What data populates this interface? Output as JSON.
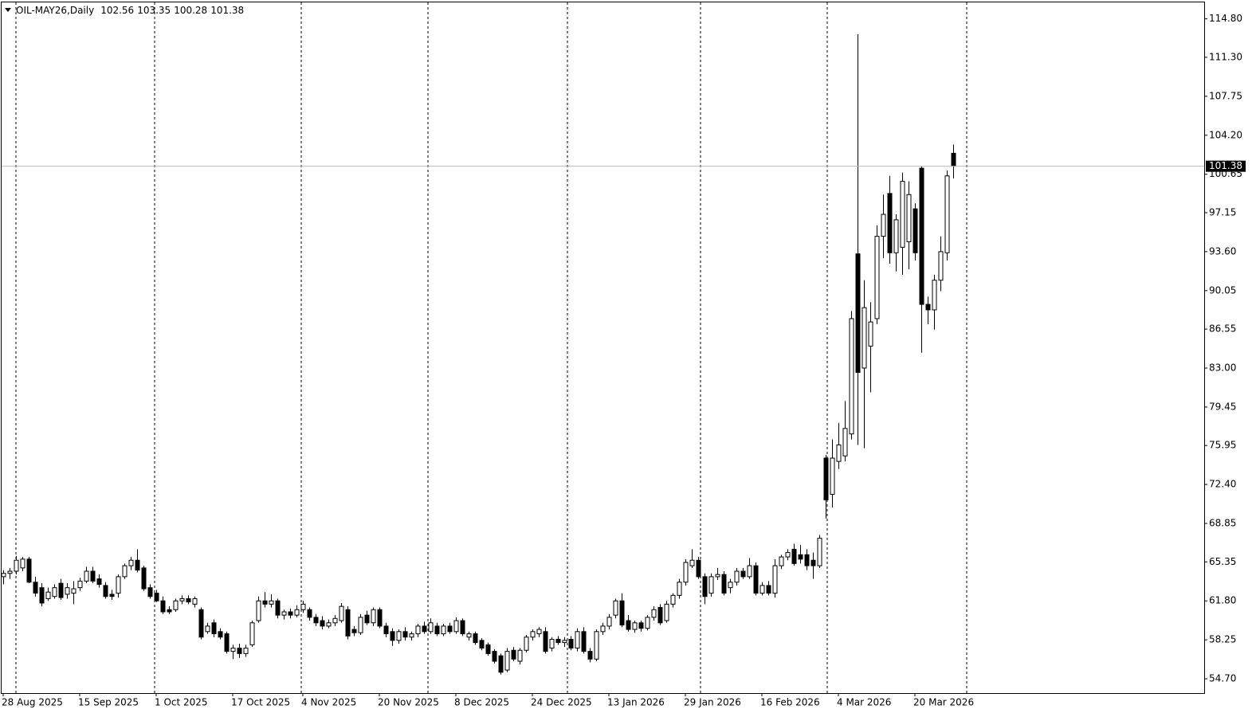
{
  "chart_data": {
    "type": "candlestick",
    "title": "OIL-MAY26,Daily",
    "up_color": "#ffffff",
    "down_color": "#000000",
    "wick_color": "#000000",
    "ylim": [
      53.4,
      116.3
    ],
    "yticks": [
      {
        "value": 54.7,
        "label": "54.70"
      },
      {
        "value": 58.25,
        "label": "58.25"
      },
      {
        "value": 61.8,
        "label": "61.80"
      },
      {
        "value": 65.35,
        "label": "65.35"
      },
      {
        "value": 68.85,
        "label": "68.85"
      },
      {
        "value": 72.4,
        "label": "72.40"
      },
      {
        "value": 75.95,
        "label": "75.95"
      },
      {
        "value": 79.45,
        "label": "79.45"
      },
      {
        "value": 83,
        "label": "83.00"
      },
      {
        "value": 86.55,
        "label": "86.55"
      },
      {
        "value": 90.05,
        "label": "90.05"
      },
      {
        "value": 93.6,
        "label": "93.60"
      },
      {
        "value": 97.15,
        "label": "97.15"
      },
      {
        "value": 100.65,
        "label": "100.65"
      },
      {
        "value": 104.2,
        "label": "104.20"
      },
      {
        "value": 107.75,
        "label": "107.75"
      },
      {
        "value": 111.3,
        "label": "111.30"
      },
      {
        "value": 114.8,
        "label": "114.80"
      }
    ],
    "categories": [
      "28 Aug 2025",
      null,
      null,
      null,
      null,
      null,
      null,
      null,
      null,
      null,
      null,
      null,
      "15 Sep 2025",
      null,
      null,
      null,
      null,
      null,
      null,
      null,
      null,
      null,
      null,
      null,
      "1 Oct 2025",
      null,
      null,
      null,
      null,
      null,
      null,
      null,
      null,
      null,
      null,
      null,
      "17 Oct 2025",
      null,
      null,
      null,
      null,
      null,
      null,
      null,
      null,
      null,
      null,
      "4 Nov 2025",
      null,
      null,
      null,
      null,
      null,
      null,
      null,
      null,
      null,
      null,
      null,
      "20 Nov 2025",
      null,
      null,
      null,
      null,
      null,
      null,
      null,
      null,
      null,
      null,
      null,
      "8 Dec 2025",
      null,
      null,
      null,
      null,
      null,
      null,
      null,
      null,
      null,
      null,
      null,
      "24 Dec 2025",
      null,
      null,
      null,
      null,
      null,
      null,
      null,
      null,
      null,
      null,
      null,
      "13 Jan 2026",
      null,
      null,
      null,
      null,
      null,
      null,
      null,
      null,
      null,
      null,
      null,
      "29 Jan 2026",
      null,
      null,
      null,
      null,
      null,
      null,
      null,
      null,
      null,
      null,
      null,
      "16 Feb 2026",
      null,
      null,
      null,
      null,
      null,
      null,
      null,
      null,
      null,
      null,
      null,
      "4 Mar 2026",
      null,
      null,
      null,
      null,
      null,
      null,
      null,
      null,
      null,
      null,
      null,
      "20 Mar 2026",
      null,
      null,
      null,
      null,
      null,
      null
    ],
    "ohlc": [
      [
        64.0,
        64.6,
        63.3,
        64.3
      ],
      [
        64.3,
        64.8,
        63.8,
        64.5
      ],
      [
        64.5,
        65.9,
        64.2,
        65.5
      ],
      [
        64.8,
        65.8,
        64.5,
        65.6
      ],
      [
        65.6,
        65.8,
        63.4,
        63.5
      ],
      [
        63.5,
        64.0,
        62.2,
        62.5
      ],
      [
        63.0,
        63.4,
        61.3,
        61.6
      ],
      [
        62.0,
        63.0,
        61.8,
        62.6
      ],
      [
        62.2,
        63.3,
        62.0,
        63.0
      ],
      [
        63.4,
        63.8,
        61.9,
        62.1
      ],
      [
        62.4,
        63.4,
        62.0,
        63.0
      ],
      [
        62.5,
        63.6,
        61.5,
        62.9
      ],
      [
        63.0,
        63.9,
        62.7,
        63.6
      ],
      [
        63.6,
        64.9,
        63.4,
        64.5
      ],
      [
        64.5,
        64.9,
        63.4,
        63.6
      ],
      [
        63.8,
        64.2,
        63.0,
        63.3
      ],
      [
        63.2,
        63.5,
        62.0,
        62.2
      ],
      [
        62.4,
        62.8,
        61.9,
        62.2
      ],
      [
        62.5,
        64.2,
        62.1,
        64.0
      ],
      [
        64.0,
        65.2,
        63.8,
        65.0
      ],
      [
        65.0,
        65.8,
        64.6,
        65.5
      ],
      [
        65.5,
        66.5,
        64.4,
        64.6
      ],
      [
        64.8,
        65.0,
        62.7,
        62.9
      ],
      [
        63.0,
        63.3,
        62.0,
        62.2
      ],
      [
        62.5,
        62.8,
        61.7,
        61.8
      ],
      [
        61.8,
        62.2,
        60.6,
        60.8
      ],
      [
        61.0,
        61.3,
        60.6,
        60.8
      ],
      [
        61.0,
        62.0,
        60.8,
        61.8
      ],
      [
        61.8,
        62.3,
        61.5,
        62.0
      ],
      [
        62.0,
        62.3,
        61.5,
        61.7
      ],
      [
        61.5,
        62.2,
        61.2,
        62.0
      ],
      [
        61.0,
        61.2,
        58.3,
        58.5
      ],
      [
        59.0,
        59.8,
        58.8,
        59.5
      ],
      [
        59.8,
        60.1,
        58.5,
        58.8
      ],
      [
        59.0,
        59.3,
        58.3,
        58.5
      ],
      [
        58.8,
        59.0,
        57.0,
        57.2
      ],
      [
        57.2,
        57.8,
        56.5,
        57.5
      ],
      [
        57.5,
        57.9,
        56.6,
        57.0
      ],
      [
        57.0,
        57.8,
        56.7,
        57.5
      ],
      [
        57.8,
        60.0,
        57.6,
        59.8
      ],
      [
        60.0,
        62.2,
        59.8,
        61.8
      ],
      [
        61.8,
        62.6,
        61.2,
        61.5
      ],
      [
        61.5,
        62.4,
        61.2,
        61.8
      ],
      [
        61.8,
        62.0,
        60.2,
        60.5
      ],
      [
        60.5,
        61.0,
        60.1,
        60.8
      ],
      [
        60.8,
        61.1,
        60.2,
        60.5
      ],
      [
        60.5,
        61.4,
        60.3,
        61.0
      ],
      [
        61.0,
        61.8,
        60.7,
        61.5
      ],
      [
        61.0,
        61.2,
        60.0,
        60.3
      ],
      [
        60.3,
        60.6,
        59.5,
        59.8
      ],
      [
        60.0,
        60.4,
        59.2,
        59.5
      ],
      [
        59.5,
        60.1,
        59.3,
        59.8
      ],
      [
        59.8,
        60.5,
        59.5,
        60.2
      ],
      [
        60.0,
        61.6,
        59.8,
        61.3
      ],
      [
        61.0,
        61.3,
        58.3,
        58.6
      ],
      [
        59.2,
        59.5,
        58.6,
        58.9
      ],
      [
        58.9,
        60.6,
        58.7,
        60.3
      ],
      [
        60.5,
        60.9,
        59.6,
        59.8
      ],
      [
        59.8,
        61.2,
        59.5,
        61.0
      ],
      [
        61.0,
        61.2,
        59.3,
        59.5
      ],
      [
        59.5,
        59.8,
        58.5,
        58.8
      ],
      [
        59.0,
        59.3,
        57.7,
        58.2
      ],
      [
        58.2,
        59.2,
        57.9,
        59.0
      ],
      [
        59.0,
        59.4,
        58.2,
        58.5
      ],
      [
        58.5,
        59.0,
        58.2,
        58.8
      ],
      [
        58.8,
        59.7,
        58.5,
        59.5
      ],
      [
        59.5,
        59.9,
        58.8,
        59.0
      ],
      [
        59.0,
        60.2,
        58.8,
        59.8
      ],
      [
        59.5,
        59.8,
        58.6,
        58.8
      ],
      [
        58.8,
        59.7,
        58.6,
        59.5
      ],
      [
        59.5,
        59.8,
        58.8,
        59.0
      ],
      [
        59.0,
        60.3,
        58.8,
        60.0
      ],
      [
        60.0,
        60.2,
        58.6,
        58.8
      ],
      [
        58.5,
        59.0,
        58.2,
        58.8
      ],
      [
        58.8,
        59.0,
        57.8,
        58.0
      ],
      [
        58.2,
        58.4,
        57.3,
        57.5
      ],
      [
        57.8,
        58.0,
        56.8,
        57.0
      ],
      [
        57.2,
        57.4,
        56.1,
        56.3
      ],
      [
        56.8,
        57.0,
        55.1,
        55.3
      ],
      [
        55.5,
        57.5,
        55.3,
        57.2
      ],
      [
        57.3,
        57.6,
        56.3,
        56.5
      ],
      [
        56.3,
        57.5,
        56.0,
        57.3
      ],
      [
        57.3,
        58.7,
        57.1,
        58.5
      ],
      [
        58.5,
        59.2,
        58.2,
        59.0
      ],
      [
        58.8,
        59.4,
        58.5,
        59.2
      ],
      [
        59.0,
        59.4,
        57.0,
        57.2
      ],
      [
        57.5,
        58.5,
        57.2,
        58.3
      ],
      [
        58.3,
        58.6,
        57.8,
        58.0
      ],
      [
        58.0,
        58.5,
        57.6,
        58.2
      ],
      [
        58.3,
        58.6,
        57.3,
        57.5
      ],
      [
        57.5,
        59.3,
        57.2,
        59.0
      ],
      [
        59.0,
        59.4,
        57.0,
        57.2
      ],
      [
        57.2,
        57.5,
        56.2,
        56.5
      ],
      [
        56.5,
        59.2,
        56.3,
        59.0
      ],
      [
        59.0,
        59.8,
        58.7,
        59.5
      ],
      [
        59.5,
        60.6,
        59.2,
        60.3
      ],
      [
        60.5,
        62.0,
        60.2,
        61.8
      ],
      [
        61.8,
        62.5,
        59.4,
        59.6
      ],
      [
        60.0,
        60.5,
        59.0,
        59.2
      ],
      [
        59.2,
        60.0,
        58.9,
        59.8
      ],
      [
        59.8,
        60.0,
        59.0,
        59.3
      ],
      [
        59.3,
        60.5,
        59.1,
        60.3
      ],
      [
        60.3,
        61.3,
        60.0,
        61.0
      ],
      [
        61.2,
        61.5,
        59.6,
        59.8
      ],
      [
        60.0,
        61.8,
        59.8,
        61.5
      ],
      [
        61.5,
        62.5,
        61.2,
        62.3
      ],
      [
        62.3,
        63.8,
        62.0,
        63.5
      ],
      [
        63.5,
        65.6,
        63.2,
        65.3
      ],
      [
        65.0,
        66.5,
        64.8,
        65.5
      ],
      [
        65.5,
        65.8,
        63.8,
        64.0
      ],
      [
        64.0,
        64.3,
        61.5,
        62.2
      ],
      [
        62.5,
        64.3,
        62.2,
        64.0
      ],
      [
        64.0,
        64.8,
        63.7,
        64.2
      ],
      [
        64.2,
        64.5,
        62.3,
        62.5
      ],
      [
        63.0,
        63.8,
        62.5,
        63.5
      ],
      [
        63.5,
        64.8,
        63.2,
        64.5
      ],
      [
        64.5,
        64.8,
        63.8,
        64.0
      ],
      [
        64.0,
        65.7,
        63.8,
        65.0
      ],
      [
        65.0,
        65.3,
        62.3,
        62.5
      ],
      [
        62.5,
        63.5,
        62.3,
        63.2
      ],
      [
        63.2,
        63.6,
        62.3,
        62.5
      ],
      [
        62.5,
        65.6,
        62.1,
        65.0
      ],
      [
        65.0,
        66.0,
        64.7,
        65.8
      ],
      [
        65.8,
        66.5,
        65.5,
        66.2
      ],
      [
        66.5,
        67.0,
        65.0,
        65.2
      ],
      [
        66.0,
        66.9,
        65.2,
        65.6
      ],
      [
        66.0,
        66.5,
        64.6,
        65.0
      ],
      [
        65.5,
        66.2,
        63.8,
        65.0
      ],
      [
        65.0,
        67.8,
        64.8,
        67.5
      ],
      [
        74.8,
        75.1,
        69.3,
        71.0
      ],
      [
        71.5,
        76.5,
        70.3,
        74.8
      ],
      [
        74.5,
        78.0,
        73.8,
        76.0
      ],
      [
        75.0,
        80.0,
        74.5,
        77.5
      ],
      [
        77.0,
        88.2,
        76.5,
        87.5
      ],
      [
        93.4,
        113.4,
        76.0,
        82.6
      ],
      [
        83.0,
        91.0,
        75.7,
        88.5
      ],
      [
        85.0,
        89.0,
        80.8,
        87.2
      ],
      [
        87.5,
        96.0,
        87.0,
        95.0
      ],
      [
        95.0,
        98.8,
        93.0,
        97.0
      ],
      [
        98.9,
        100.5,
        92.5,
        93.5
      ],
      [
        93.5,
        97.0,
        91.8,
        96.5
      ],
      [
        94.0,
        100.8,
        91.5,
        100.0
      ],
      [
        94.5,
        100.0,
        92.0,
        98.8
      ],
      [
        97.5,
        98.0,
        92.8,
        93.5
      ],
      [
        101.2,
        101.4,
        84.4,
        88.8
      ],
      [
        88.8,
        89.5,
        87.0,
        88.3
      ],
      [
        88.3,
        91.5,
        86.5,
        91.0
      ],
      [
        91.0,
        95.0,
        90.0,
        93.6
      ],
      [
        93.5,
        101.0,
        92.8,
        100.5
      ],
      [
        102.56,
        103.35,
        100.28,
        101.38
      ]
    ]
  }
}
